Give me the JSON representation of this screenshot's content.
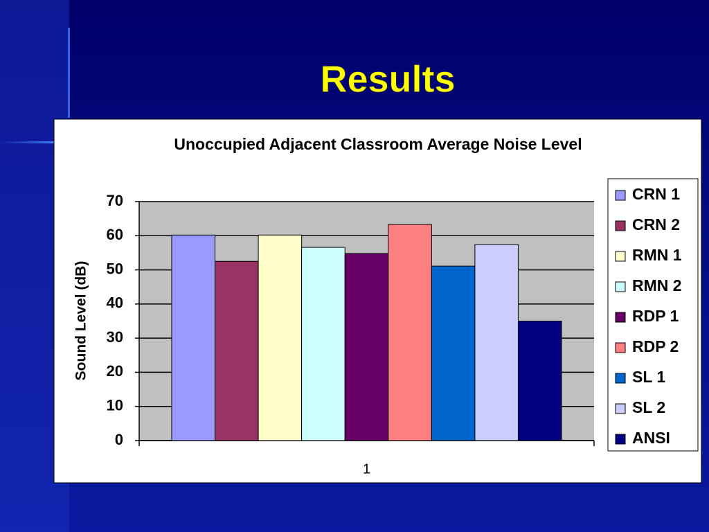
{
  "slide_title": "Results",
  "chart_data": {
    "type": "bar",
    "title": "Unoccupied Adjacent Classroom Average Noise Level",
    "y_label": "Sound Level (dB)",
    "categories": [
      "1"
    ],
    "series": [
      {
        "name": "CRN 1",
        "color": "#9999ff",
        "values": [
          60.2
        ]
      },
      {
        "name": "CRN 2",
        "color": "#993366",
        "values": [
          52.5
        ]
      },
      {
        "name": "RMN 1",
        "color": "#ffffcc",
        "values": [
          60.2
        ]
      },
      {
        "name": "RMN 2",
        "color": "#ccffff",
        "values": [
          56.6
        ]
      },
      {
        "name": "RDP 1",
        "color": "#660066",
        "values": [
          54.8
        ]
      },
      {
        "name": "RDP 2",
        "color": "#ff8080",
        "values": [
          63.3
        ]
      },
      {
        "name": "SL 1",
        "color": "#0066cc",
        "values": [
          51.1
        ]
      },
      {
        "name": "SL 2",
        "color": "#ccccff",
        "values": [
          57.4
        ]
      },
      {
        "name": "ANSI",
        "color": "#000080",
        "values": [
          35
        ]
      }
    ],
    "ylim": [
      0,
      70
    ],
    "yticks": [
      0,
      10,
      20,
      30,
      40,
      50,
      60,
      70
    ],
    "grid": true,
    "legend": "right"
  }
}
